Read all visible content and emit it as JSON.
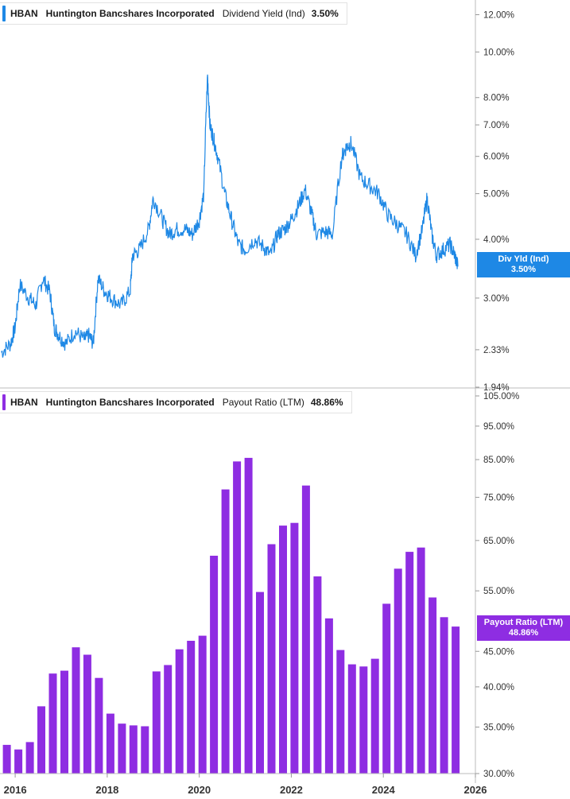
{
  "colors": {
    "yield": "#1e88e5",
    "payout": "#8e2de2"
  },
  "chart_data": [
    {
      "type": "line",
      "ticker": "HBAN",
      "company": "Huntington Bancshares Incorporated",
      "metric": "Dividend Yield (Ind)",
      "current_value": "3.50%",
      "tag_title": "Div Yld (Ind)",
      "y_scale": "log",
      "ylim": [
        1.94,
        12.5
      ],
      "y_ticks": [
        "12.00%",
        "10.00%",
        "8.00%",
        "7.00%",
        "6.00%",
        "5.00%",
        "4.00%",
        "3.00%",
        "2.33%",
        "1.94%"
      ],
      "y_tick_values": [
        12,
        10,
        8,
        7,
        6,
        5,
        4,
        3,
        2.33,
        1.94
      ],
      "x": [
        2015.7,
        2015.9,
        2016.0,
        2016.1,
        2016.3,
        2016.45,
        2016.6,
        2016.75,
        2016.85,
        2016.95,
        2017.1,
        2017.3,
        2017.5,
        2017.6,
        2017.7,
        2017.8,
        2017.95,
        2018.1,
        2018.3,
        2018.5,
        2018.55,
        2018.7,
        2018.9,
        2019.0,
        2019.2,
        2019.35,
        2019.5,
        2019.7,
        2019.85,
        2020.0,
        2020.1,
        2020.18,
        2020.23,
        2020.3,
        2020.4,
        2020.55,
        2020.7,
        2020.85,
        2021.0,
        2021.2,
        2021.4,
        2021.55,
        2021.7,
        2021.85,
        2022.0,
        2022.15,
        2022.3,
        2022.45,
        2022.55,
        2022.75,
        2022.9,
        2023.1,
        2023.2,
        2023.3,
        2023.5,
        2023.7,
        2023.9,
        2024.1,
        2024.3,
        2024.5,
        2024.7,
        2024.85,
        2024.95,
        2025.05,
        2025.15,
        2025.3,
        2025.45,
        2025.55,
        2025.62
      ],
      "values": [
        2.3,
        2.4,
        2.6,
        3.2,
        3.0,
        2.9,
        3.3,
        3.1,
        2.6,
        2.5,
        2.4,
        2.55,
        2.45,
        2.5,
        2.4,
        3.3,
        3.1,
        3.0,
        2.9,
        3.1,
        3.7,
        3.8,
        4.2,
        4.9,
        4.4,
        4.1,
        4.2,
        4.2,
        4.1,
        4.4,
        5.0,
        8.9,
        7.0,
        6.6,
        6.0,
        5.0,
        4.4,
        3.9,
        3.8,
        4.0,
        3.85,
        3.7,
        4.1,
        4.2,
        4.4,
        4.7,
        5.1,
        4.5,
        4.1,
        4.15,
        4.1,
        6.0,
        6.3,
        6.4,
        5.4,
        5.2,
        5.0,
        4.5,
        4.3,
        4.1,
        3.7,
        4.2,
        4.9,
        4.1,
        3.7,
        3.8,
        3.9,
        3.7,
        3.5
      ]
    },
    {
      "type": "bar",
      "ticker": "HBAN",
      "company": "Huntington Bancshares Incorporated",
      "metric": "Payout Ratio (LTM)",
      "current_value": "48.86%",
      "tag_title": "Payout Ratio (LTM)",
      "y_scale": "log",
      "ylim": [
        30,
        105
      ],
      "y_ticks": [
        "105.00%",
        "95.00%",
        "85.00%",
        "75.00%",
        "65.00%",
        "55.00%",
        "45.00%",
        "40.00%",
        "35.00%",
        "30.00%"
      ],
      "y_tick_values": [
        105,
        95,
        85,
        75,
        65,
        55,
        45,
        40,
        35,
        30
      ],
      "x_ticks": [
        "2016",
        "2018",
        "2020",
        "2022",
        "2024",
        "2026"
      ],
      "x_tick_values": [
        2016,
        2018,
        2020,
        2022,
        2024,
        2026
      ],
      "x": [
        2015.75,
        2016.0,
        2016.25,
        2016.5,
        2016.75,
        2017.0,
        2017.25,
        2017.5,
        2017.75,
        2018.0,
        2018.25,
        2018.5,
        2018.75,
        2019.0,
        2019.25,
        2019.5,
        2019.75,
        2020.0,
        2020.25,
        2020.5,
        2020.75,
        2021.0,
        2021.25,
        2021.5,
        2021.75,
        2022.0,
        2022.25,
        2022.5,
        2022.75,
        2023.0,
        2023.25,
        2023.5,
        2023.75,
        2024.0,
        2024.25,
        2024.5,
        2024.75,
        2025.0,
        2025.25,
        2025.5
      ],
      "values": [
        33.0,
        32.5,
        33.3,
        37.5,
        41.8,
        42.2,
        45.6,
        44.5,
        41.2,
        36.6,
        35.4,
        35.2,
        35.1,
        42.1,
        43.0,
        45.3,
        46.6,
        47.4,
        61.8,
        77.0,
        84.5,
        85.5,
        54.8,
        64.2,
        68.3,
        68.9,
        78.0,
        57.7,
        50.2,
        45.2,
        43.1,
        42.8,
        43.9,
        52.7,
        59.2,
        62.6,
        63.5,
        53.8,
        50.4,
        48.86
      ]
    }
  ]
}
